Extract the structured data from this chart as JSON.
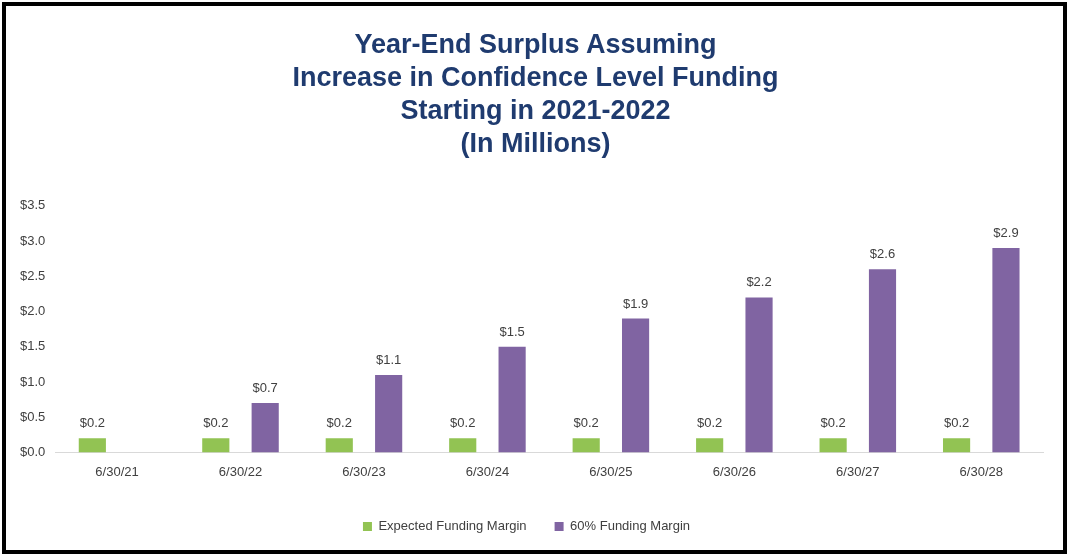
{
  "chart_data": {
    "type": "bar",
    "title": "Year-End Surplus Assuming\nIncrease in Confidence Level Funding\nStarting in 2021-2022",
    "subtitle": "(In Millions)",
    "categories": [
      "6/30/21",
      "6/30/22",
      "6/30/23",
      "6/30/24",
      "6/30/25",
      "6/30/26",
      "6/30/27",
      "6/30/28"
    ],
    "series": [
      {
        "name": "Expected Funding Margin",
        "color": "#92c353",
        "values": [
          0.2,
          0.2,
          0.2,
          0.2,
          0.2,
          0.2,
          0.2,
          0.2
        ],
        "value_labels": [
          "$0.2",
          "$0.2",
          "$0.2",
          "$0.2",
          "$0.2",
          "$0.2",
          "$0.2",
          "$0.2"
        ]
      },
      {
        "name": "60% Funding Margin",
        "color": "#8064a2",
        "values": [
          null,
          0.7,
          1.1,
          1.5,
          1.9,
          2.2,
          2.6,
          2.9
        ],
        "value_labels": [
          null,
          "$0.7",
          "$1.1",
          "$1.5",
          "$1.9",
          "$2.2",
          "$2.6",
          "$2.9"
        ]
      }
    ],
    "ylim": [
      0,
      3.5
    ],
    "yticks": [
      {
        "value": 0,
        "label": "$0.0"
      },
      {
        "value": 0.5,
        "label": "$0.5"
      },
      {
        "value": 1,
        "label": "$1.0"
      },
      {
        "value": 1.5,
        "label": "$1.5"
      },
      {
        "value": 2,
        "label": "$2.0"
      },
      {
        "value": 2.5,
        "label": "$2.5"
      },
      {
        "value": 3,
        "label": "$3.0"
      },
      {
        "value": 3.5,
        "label": "$3.5"
      }
    ],
    "grid": false,
    "legend": "bottom"
  }
}
